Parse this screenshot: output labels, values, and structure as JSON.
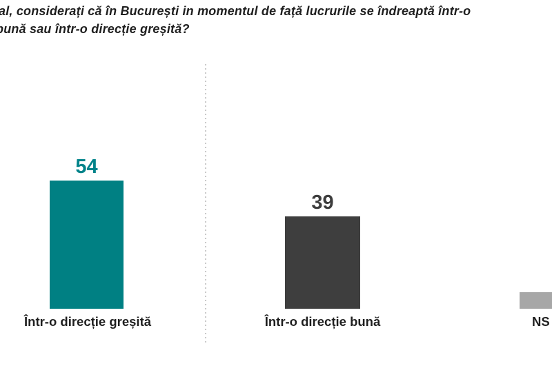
{
  "title": {
    "line1": "al, considerați că în București in momentul de față lucrurile se îndreaptă într-o",
    "line2": "bună sau într-o direcție greșită?"
  },
  "chart_data": {
    "type": "bar",
    "title_visible_text": "al, considerați că în București in momentul de față lucrurile se îndreaptă într-o bună sau într-o direcție greșită?",
    "categories": [
      "Într-o direcție greșită",
      "Într-o direcție bună",
      "NS"
    ],
    "values": [
      54,
      39,
      7
    ],
    "value_labels": [
      "54",
      "39",
      ""
    ],
    "bar_colors": [
      "#008083",
      "#3e3e3e",
      "#a7a7a7"
    ],
    "value_label_colors": [
      "#00838a",
      "#3d3d3d",
      "#a7a7a7"
    ],
    "xlabel": "",
    "ylabel": "",
    "ylim": [
      0,
      60
    ],
    "grid": false,
    "legend": false,
    "layout_hints": {
      "divider": "dotted vertical line between first and second bar",
      "third_bar": "clipped at right edge of image; value label not visible, value estimated from bar height",
      "title_clip": "title text clipped at left edge of image"
    }
  }
}
